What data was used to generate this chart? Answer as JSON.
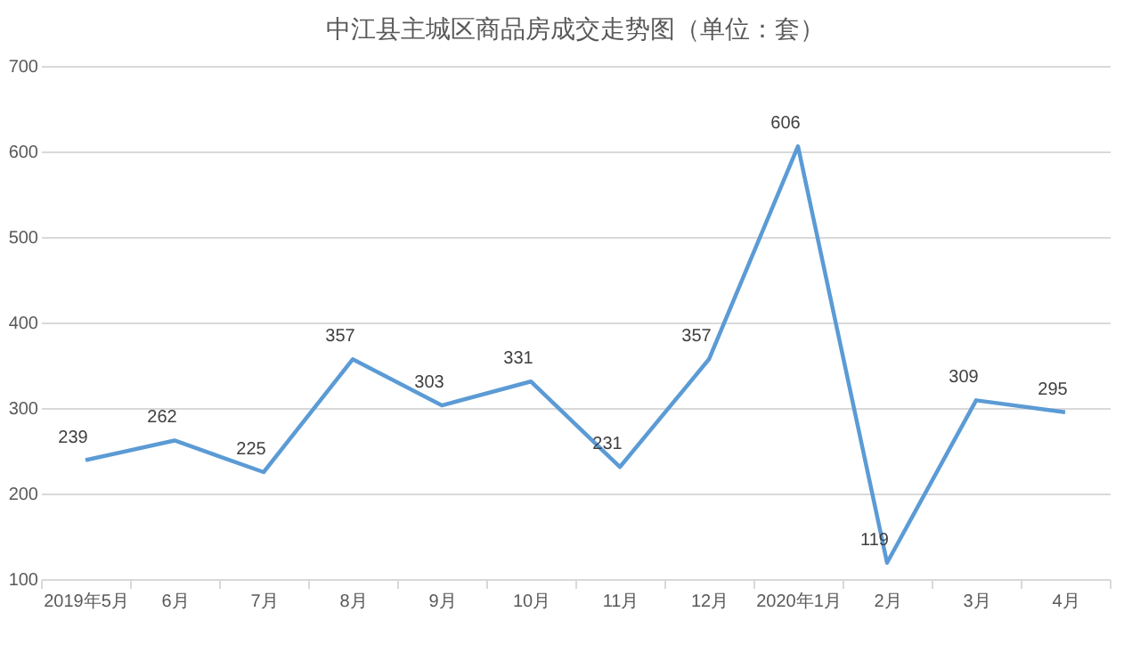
{
  "chart_data": {
    "type": "line",
    "title": "中江县主城区商品房成交走势图（单位：套）",
    "categories": [
      "2019年5月",
      "6月",
      "7月",
      "8月",
      "9月",
      "10月",
      "11月",
      "12月",
      "2020年1月",
      "2月",
      "3月",
      "4月"
    ],
    "series": [
      {
        "color": "#5b9bd5",
        "values": [
          239,
          262,
          225,
          357,
          303,
          331,
          231,
          357,
          606,
          119,
          309,
          295
        ]
      }
    ],
    "ylim": [
      100,
      700
    ],
    "yticks": [
      100,
      200,
      300,
      400,
      500,
      600,
      700
    ],
    "grid": "y",
    "data_labels": true,
    "marker": "none",
    "line_style": "solid"
  }
}
